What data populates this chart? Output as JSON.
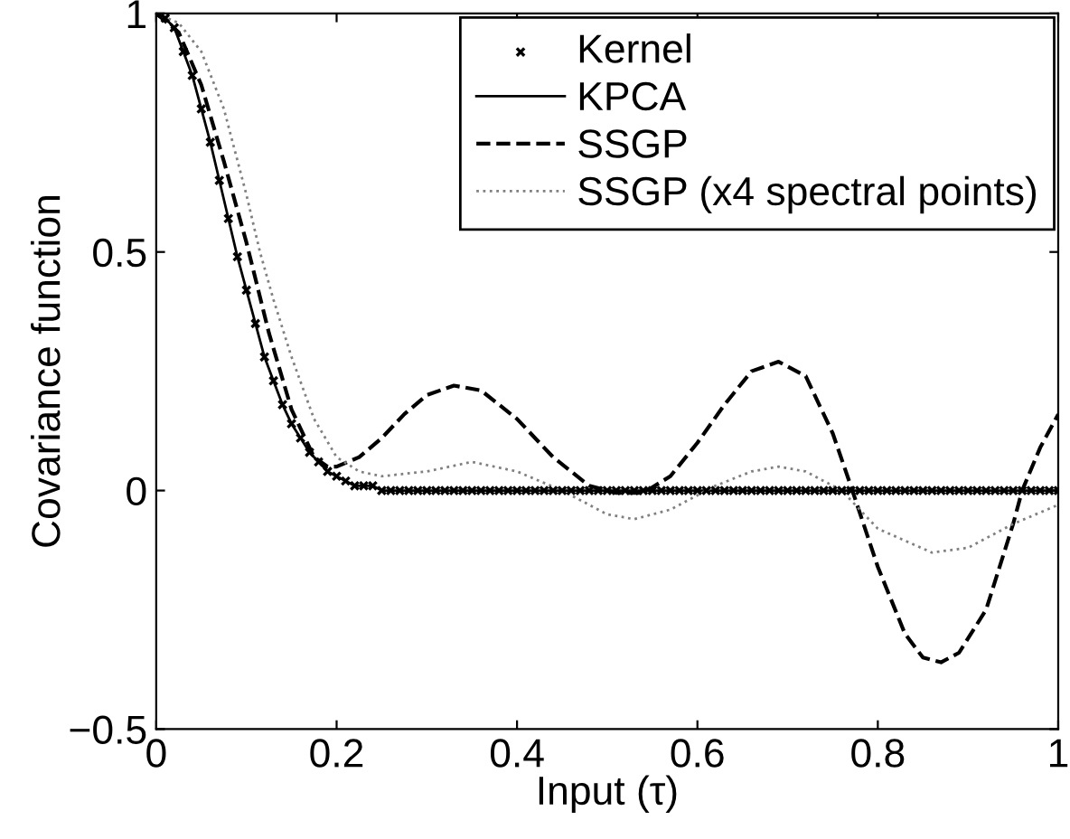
{
  "chart_data": {
    "type": "line",
    "xlabel": "Input (τ)",
    "ylabel": "Covariance function",
    "xlim": [
      0,
      1
    ],
    "ylim": [
      -0.5,
      1
    ],
    "xticks": [
      0,
      0.2,
      0.4,
      0.6,
      0.8,
      1
    ],
    "yticks": [
      -0.5,
      0,
      0.5,
      1
    ],
    "grid": false,
    "legend": "top right",
    "series": [
      {
        "name": "Kernel",
        "type": "scatter",
        "marker": "cross",
        "color": "#000000",
        "x": [
          0,
          0.01,
          0.02,
          0.03,
          0.04,
          0.05,
          0.06,
          0.07,
          0.08,
          0.09,
          0.1,
          0.11,
          0.12,
          0.13,
          0.14,
          0.15,
          0.16,
          0.17,
          0.18,
          0.19,
          0.2,
          0.21,
          0.22,
          0.23,
          0.24,
          0.25,
          0.26,
          0.27,
          0.28,
          0.29,
          0.3,
          0.31,
          0.32,
          0.33,
          0.34,
          0.35,
          0.36,
          0.37,
          0.38,
          0.39,
          0.4,
          0.41,
          0.42,
          0.43,
          0.44,
          0.45,
          0.46,
          0.47,
          0.48,
          0.49,
          0.5,
          0.51,
          0.52,
          0.53,
          0.54,
          0.55,
          0.56,
          0.57,
          0.58,
          0.59,
          0.6,
          0.61,
          0.62,
          0.63,
          0.64,
          0.65,
          0.66,
          0.67,
          0.68,
          0.69,
          0.7,
          0.71,
          0.72,
          0.73,
          0.74,
          0.75,
          0.76,
          0.77,
          0.78,
          0.79,
          0.8,
          0.81,
          0.82,
          0.83,
          0.84,
          0.85,
          0.86,
          0.87,
          0.88,
          0.89,
          0.9,
          0.91,
          0.92,
          0.93,
          0.94,
          0.95,
          0.96,
          0.97,
          0.98,
          0.99,
          1
        ],
        "values": [
          1,
          0.99,
          0.97,
          0.92,
          0.87,
          0.8,
          0.73,
          0.65,
          0.57,
          0.49,
          0.42,
          0.35,
          0.28,
          0.23,
          0.18,
          0.14,
          0.11,
          0.08,
          0.06,
          0.04,
          0.03,
          0.02,
          0.01,
          0.01,
          0.01,
          0,
          0,
          0,
          0,
          0,
          0,
          0,
          0,
          0,
          0,
          0,
          0,
          0,
          0,
          0,
          0,
          0,
          0,
          0,
          0,
          0,
          0,
          0,
          0,
          0,
          0,
          0,
          0,
          0,
          0,
          0,
          0,
          0,
          0,
          0,
          0,
          0,
          0,
          0,
          0,
          0,
          0,
          0,
          0,
          0,
          0,
          0,
          0,
          0,
          0,
          0,
          0,
          0,
          0,
          0,
          0,
          0,
          0,
          0,
          0,
          0,
          0,
          0,
          0,
          0,
          0,
          0,
          0,
          0,
          0,
          0,
          0,
          0,
          0,
          0,
          0
        ]
      },
      {
        "name": "KPCA",
        "line_style": "solid",
        "color": "#000000",
        "x": [
          0,
          0.01,
          0.02,
          0.03,
          0.04,
          0.05,
          0.06,
          0.07,
          0.08,
          0.09,
          0.1,
          0.11,
          0.12,
          0.13,
          0.14,
          0.15,
          0.16,
          0.17,
          0.18,
          0.19,
          0.2,
          0.21,
          0.22,
          0.23,
          0.24,
          0.25,
          0.26,
          0.27,
          0.28,
          0.29,
          0.3,
          0.31,
          0.32,
          0.33,
          0.34,
          0.35,
          0.36,
          0.37,
          0.38,
          0.39,
          0.4,
          0.41,
          0.42,
          0.43,
          0.44,
          0.45,
          0.46,
          0.47,
          0.48,
          0.49,
          0.5,
          0.51,
          0.52,
          0.53,
          0.54,
          0.55,
          0.56,
          0.57,
          0.58,
          0.59,
          0.6,
          0.61,
          0.62,
          0.63,
          0.64,
          0.65,
          0.66,
          0.67,
          0.68,
          0.69,
          0.7,
          0.71,
          0.72,
          0.73,
          0.74,
          0.75,
          0.76,
          0.77,
          0.78,
          0.79,
          0.8,
          0.81,
          0.82,
          0.83,
          0.84,
          0.85,
          0.86,
          0.87,
          0.88,
          0.89,
          0.9,
          0.91,
          0.92,
          0.93,
          0.94,
          0.95,
          0.96,
          0.97,
          0.98,
          0.99,
          1
        ],
        "values": [
          1,
          0.99,
          0.97,
          0.92,
          0.87,
          0.8,
          0.73,
          0.65,
          0.57,
          0.49,
          0.42,
          0.35,
          0.28,
          0.23,
          0.18,
          0.14,
          0.11,
          0.08,
          0.06,
          0.04,
          0.03,
          0.02,
          0.01,
          0.01,
          0.01,
          0,
          0,
          0,
          0,
          0,
          0,
          0,
          0,
          0,
          0,
          0,
          0,
          0,
          0,
          0,
          0,
          0,
          0,
          0,
          0,
          0,
          0,
          0,
          0,
          0,
          0,
          0,
          0,
          0,
          0,
          0,
          0,
          0,
          0,
          0,
          0,
          0,
          0,
          0,
          0,
          0,
          0,
          0,
          0,
          0,
          0,
          0,
          0,
          0,
          0,
          0,
          0,
          0,
          0,
          0,
          0,
          0,
          0,
          0,
          0,
          0,
          0,
          0,
          0,
          0,
          0,
          0,
          0,
          0,
          0,
          0,
          0,
          0,
          0,
          0,
          0
        ]
      },
      {
        "name": "SSGP",
        "line_style": "dashed",
        "color": "#000000",
        "x": [
          0,
          0.025,
          0.05,
          0.075,
          0.1,
          0.125,
          0.15,
          0.175,
          0.19,
          0.2,
          0.225,
          0.25,
          0.275,
          0.3,
          0.33,
          0.36,
          0.4,
          0.44,
          0.48,
          0.51,
          0.54,
          0.57,
          0.6,
          0.63,
          0.66,
          0.69,
          0.72,
          0.75,
          0.77,
          0.8,
          0.83,
          0.85,
          0.87,
          0.89,
          0.92,
          0.95,
          0.96,
          0.98,
          1
        ],
        "values": [
          1,
          0.96,
          0.85,
          0.69,
          0.52,
          0.33,
          0.17,
          0.07,
          0.05,
          0.05,
          0.07,
          0.11,
          0.16,
          0.2,
          0.22,
          0.21,
          0.15,
          0.07,
          0.01,
          -0.005,
          -0.005,
          0.03,
          0.1,
          0.18,
          0.25,
          0.27,
          0.24,
          0.12,
          0.01,
          -0.16,
          -0.3,
          -0.35,
          -0.36,
          -0.34,
          -0.25,
          -0.07,
          0,
          0.09,
          0.16
        ]
      },
      {
        "name": "SSGP (x4 spectral points)",
        "line_style": "dotted",
        "color": "#808080",
        "x": [
          0,
          0.025,
          0.05,
          0.075,
          0.1,
          0.115,
          0.13,
          0.15,
          0.175,
          0.2,
          0.225,
          0.25,
          0.3,
          0.35,
          0.4,
          0.45,
          0.5,
          0.53,
          0.57,
          0.62,
          0.66,
          0.69,
          0.72,
          0.76,
          0.8,
          0.86,
          0.9,
          0.95,
          1
        ],
        "values": [
          1,
          0.98,
          0.92,
          0.8,
          0.62,
          0.5,
          0.4,
          0.28,
          0.15,
          0.07,
          0.04,
          0.03,
          0.04,
          0.06,
          0.04,
          0,
          -0.05,
          -0.06,
          -0.04,
          0.01,
          0.04,
          0.05,
          0.04,
          0,
          -0.08,
          -0.13,
          -0.12,
          -0.07,
          -0.03
        ]
      }
    ]
  }
}
